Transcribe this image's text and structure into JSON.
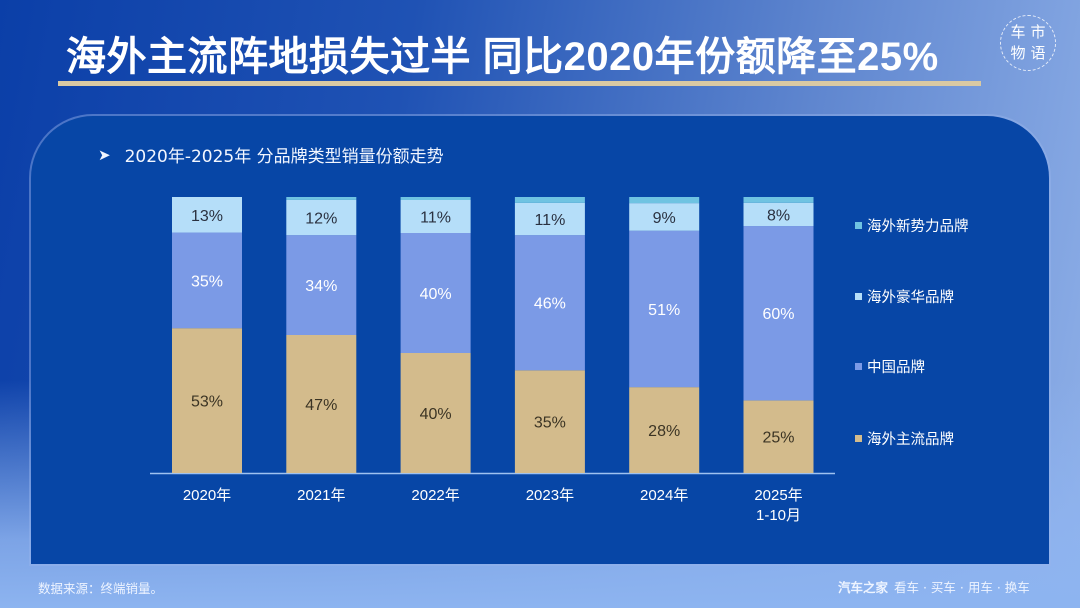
{
  "header": {
    "title": "海外主流阵地损失过半 同比2020年份额降至25%",
    "logo_chars": [
      "车",
      "市",
      "物",
      "语"
    ]
  },
  "panel": {
    "subtitle_icon": "arrow-right-icon",
    "subtitle": "2020年-2025年 分品牌类型销量份额走势"
  },
  "footer": {
    "source": "数据来源：终端销量。",
    "brand_name": "汽车之家",
    "brand_slogan": "看车 · 买车 · 用车 · 换车"
  },
  "colors": {
    "background": "#0746a6",
    "main_brand": "#d3bb8c",
    "china_brand": "#7b9ae6",
    "luxury_brand": "#b5def9",
    "new_power_brand": "#6fc3e2",
    "title_rule": "#d9c9a3"
  },
  "chart_data": {
    "type": "bar",
    "stacked": true,
    "title": "2020年-2025年 分品牌类型销量份额走势",
    "xlabel": "",
    "ylabel": "",
    "ylim": [
      0,
      100
    ],
    "unit": "%",
    "grid": false,
    "legend_position": "right",
    "categories": [
      "2020年",
      "2021年",
      "2022年",
      "2023年",
      "2024年",
      "2025年\n1-10月"
    ],
    "category_lines": [
      [
        "2020年"
      ],
      [
        "2021年"
      ],
      [
        "2022年"
      ],
      [
        "2023年"
      ],
      [
        "2024年"
      ],
      [
        "2025年",
        "1-10月"
      ]
    ],
    "series": [
      {
        "name": "海外主流品牌",
        "color": "#d3bb8c",
        "label_color": "#3b3424",
        "values": [
          53,
          47,
          40,
          35,
          28,
          25
        ],
        "labeled": true
      },
      {
        "name": "中国品牌",
        "color": "#7b9ae6",
        "label_color": "#ffffff",
        "values": [
          35,
          34,
          40,
          46,
          51,
          60
        ],
        "labeled": true
      },
      {
        "name": "海外豪华品牌",
        "color": "#b5def9",
        "label_color": "#2a3140",
        "values": [
          13,
          12,
          11,
          11,
          9,
          8
        ],
        "labeled": true
      },
      {
        "name": "海外新势力品牌",
        "color": "#6fc3e2",
        "label_color": "#2a3140",
        "values": [
          0,
          1,
          1,
          2,
          2,
          2
        ],
        "labeled": false
      }
    ],
    "legend_order": [
      "海外新势力品牌",
      "海外豪华品牌",
      "中国品牌",
      "海外主流品牌"
    ]
  }
}
